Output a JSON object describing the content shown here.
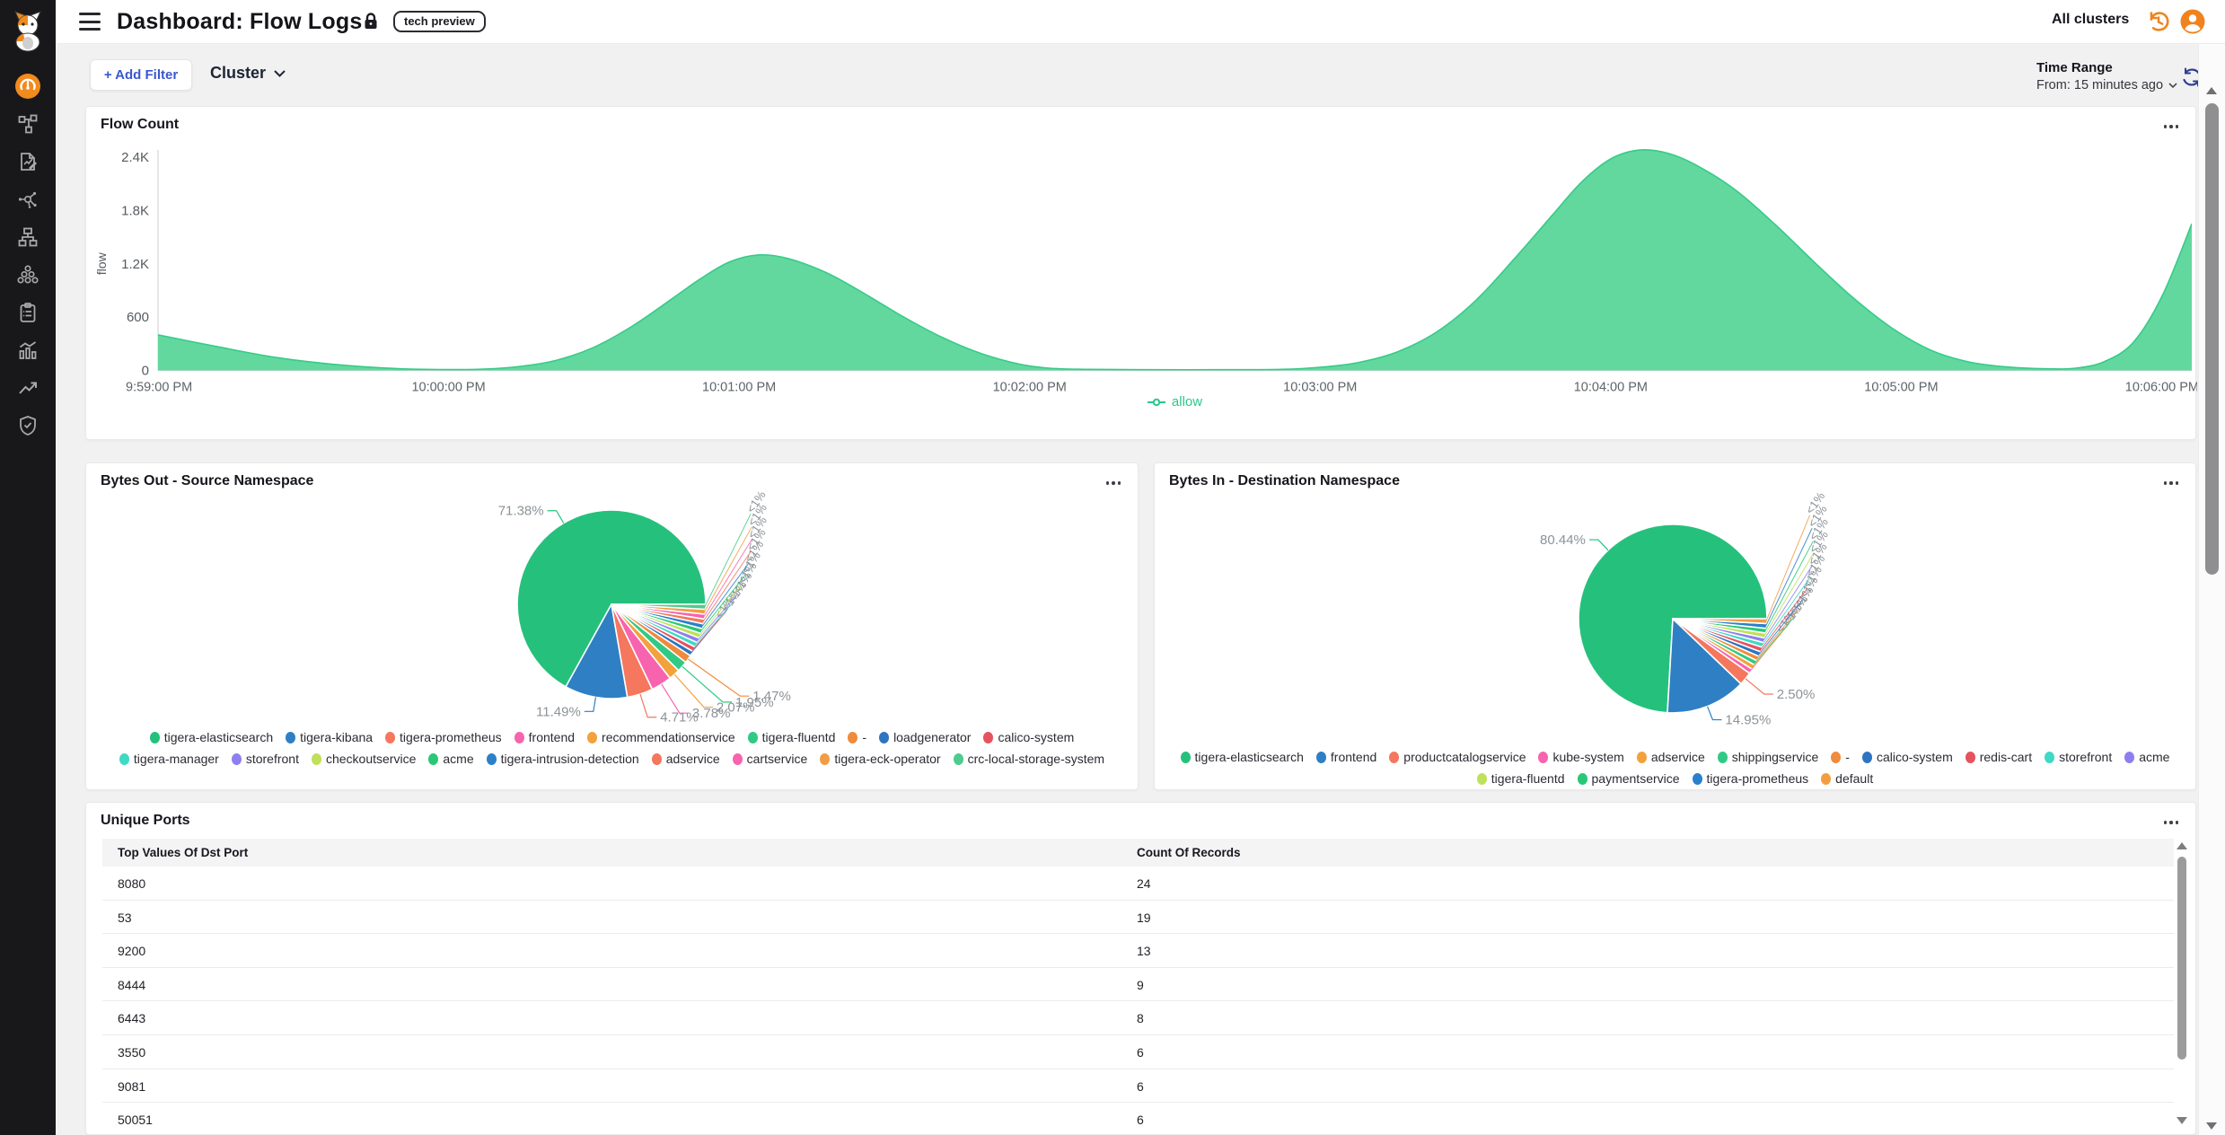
{
  "app": {
    "title": "Dashboard: Flow Logs",
    "badge": "tech preview",
    "clusters_label": "All clusters"
  },
  "filter_bar": {
    "add_filter_label": "+ Add Filter",
    "cluster_label": "Cluster",
    "time_range_label": "Time Range",
    "time_range_value": "From: 15 minutes ago"
  },
  "sidebar": {
    "icons": [
      "calico-cat-logo",
      "dashboard-gauge",
      "service-graph",
      "flow-logs",
      "threat-graph",
      "network-topology",
      "clusters",
      "compliance-clipboard",
      "metrics-chart",
      "trends",
      "security-shield"
    ],
    "active": "dashboard-gauge",
    "accent_color": "#f28a1e"
  },
  "chart_data": [
    {
      "type": "area",
      "title": "Flow Count",
      "ylabel": "flow",
      "ylim": [
        0,
        2400
      ],
      "yticks": [
        {
          "v": 0,
          "label": "0"
        },
        {
          "v": 600,
          "label": "600"
        },
        {
          "v": 1200,
          "label": "1.2K"
        },
        {
          "v": 1800,
          "label": "1.8K"
        },
        {
          "v": 2400,
          "label": "2.4K"
        }
      ],
      "xtick_labels": [
        "9:59:00 PM",
        "10:00:00 PM",
        "10:01:00 PM",
        "10:02:00 PM",
        "10:03:00 PM",
        "10:04:00 PM",
        "10:05:00 PM",
        "10:06:00 PM"
      ],
      "x_range_seconds": [
        0,
        420
      ],
      "legend": [
        {
          "label": "allow",
          "color": "#2bc98a"
        }
      ],
      "series": [
        {
          "name": "allow",
          "fill": "#62d89e",
          "line": "#36cb88",
          "points": [
            [
              0,
              400
            ],
            [
              12,
              270
            ],
            [
              25,
              140
            ],
            [
              38,
              60
            ],
            [
              50,
              18
            ],
            [
              58,
              10
            ],
            [
              66,
              12
            ],
            [
              74,
              40
            ],
            [
              82,
              110
            ],
            [
              90,
              260
            ],
            [
              98,
              500
            ],
            [
              106,
              800
            ],
            [
              112,
              1030
            ],
            [
              118,
              1220
            ],
            [
              124,
              1300
            ],
            [
              130,
              1260
            ],
            [
              138,
              1100
            ],
            [
              146,
              860
            ],
            [
              154,
              600
            ],
            [
              162,
              370
            ],
            [
              170,
              190
            ],
            [
              178,
              70
            ],
            [
              184,
              25
            ],
            [
              192,
              12
            ],
            [
              205,
              8
            ],
            [
              220,
              8
            ],
            [
              232,
              12
            ],
            [
              240,
              35
            ],
            [
              248,
              90
            ],
            [
              256,
              210
            ],
            [
              264,
              430
            ],
            [
              272,
              780
            ],
            [
              280,
              1250
            ],
            [
              288,
              1750
            ],
            [
              294,
              2120
            ],
            [
              300,
              2380
            ],
            [
              306,
              2480
            ],
            [
              312,
              2440
            ],
            [
              318,
              2300
            ],
            [
              326,
              2020
            ],
            [
              334,
              1640
            ],
            [
              342,
              1220
            ],
            [
              350,
              820
            ],
            [
              358,
              480
            ],
            [
              366,
              230
            ],
            [
              374,
              95
            ],
            [
              382,
              38
            ],
            [
              390,
              18
            ],
            [
              396,
              25
            ],
            [
              402,
              100
            ],
            [
              408,
              320
            ],
            [
              414,
              850
            ],
            [
              420,
              1650
            ]
          ]
        }
      ]
    },
    {
      "type": "pie",
      "title": "Bytes Out - Source Namespace",
      "slices": [
        {
          "label": "tigera-elasticsearch",
          "value": 71.38,
          "display": "71.38%",
          "color": "#25c17c"
        },
        {
          "label": "tigera-kibana",
          "value": 11.49,
          "display": "11.49%",
          "color": "#2e7fc3"
        },
        {
          "label": "tigera-prometheus",
          "value": 4.71,
          "display": "4.71%",
          "color": "#f4775e"
        },
        {
          "label": "frontend",
          "value": 3.78,
          "display": "3.78%",
          "color": "#f763ae"
        },
        {
          "label": "recommendationservice",
          "value": 2.07,
          "display": "2.07%",
          "color": "#f2a23c"
        },
        {
          "label": "tigera-fluentd",
          "value": 1.95,
          "display": "1.95%",
          "color": "#30ca85"
        },
        {
          "label": "-",
          "value": 1.47,
          "display": "1.47%",
          "color": "#f08a3c"
        },
        {
          "label": "loadgenerator",
          "value": 0.29,
          "display": "<1%",
          "color": "#2f74c0"
        },
        {
          "label": "calico-system",
          "value": 0.29,
          "display": "<1%",
          "color": "#e6525e"
        },
        {
          "label": "tigera-manager",
          "value": 0.29,
          "display": "<1%",
          "color": "#3fd9c4"
        },
        {
          "label": "storefront",
          "value": 0.29,
          "display": "<1%",
          "color": "#8d7ff0"
        },
        {
          "label": "checkoutservice",
          "value": 0.29,
          "display": "<1%",
          "color": "#bfe05a"
        },
        {
          "label": "acme",
          "value": 0.29,
          "display": "<1%",
          "color": "#28c876"
        },
        {
          "label": "tigera-intrusion-detection",
          "value": 0.29,
          "display": "<1%",
          "color": "#2b80ca"
        },
        {
          "label": "adservice",
          "value": 0.29,
          "display": "<1%",
          "color": "#f4775e"
        },
        {
          "label": "cartservice",
          "value": 0.29,
          "display": "<1%",
          "color": "#f763ae"
        },
        {
          "label": "tigera-eck-operator",
          "value": 0.28,
          "display": "<1%",
          "color": "#f29d43"
        },
        {
          "label": "crc-local-storage-system",
          "value": 0.28,
          "display": "<1%",
          "color": "#4ecb8d"
        }
      ]
    },
    {
      "type": "pie",
      "title": "Bytes In - Destination Namespace",
      "slices": [
        {
          "label": "tigera-elasticsearch",
          "value": 80.44,
          "display": "80.44%",
          "color": "#25c17c"
        },
        {
          "label": "frontend",
          "value": 14.95,
          "display": "14.95%",
          "color": "#2e7fc3"
        },
        {
          "label": "productcatalogservice",
          "value": 2.5,
          "display": "2.50%",
          "color": "#f4775e"
        },
        {
          "label": "kube-system",
          "value": 0.18,
          "display": "<1%",
          "color": "#f763ae"
        },
        {
          "label": "adservice",
          "value": 0.18,
          "display": "<1%",
          "color": "#f2a23c"
        },
        {
          "label": "shippingservice",
          "value": 0.18,
          "display": "<1%",
          "color": "#30ca85"
        },
        {
          "label": "-",
          "value": 0.18,
          "display": "<1%",
          "color": "#f08a3c"
        },
        {
          "label": "calico-system",
          "value": 0.18,
          "display": "<1%",
          "color": "#2f74c0"
        },
        {
          "label": "redis-cart",
          "value": 0.18,
          "display": "<1%",
          "color": "#e6525e"
        },
        {
          "label": "storefront",
          "value": 0.18,
          "display": "<1%",
          "color": "#3fd9c4"
        },
        {
          "label": "acme",
          "value": 0.18,
          "display": "<1%",
          "color": "#8d7ff0"
        },
        {
          "label": "tigera-fluentd",
          "value": 0.18,
          "display": "<1%",
          "color": "#bfe05a"
        },
        {
          "label": "paymentservice",
          "value": 0.18,
          "display": "<1%",
          "color": "#28c876"
        },
        {
          "label": "tigera-prometheus",
          "value": 0.18,
          "display": "<1%",
          "color": "#2b80ca"
        },
        {
          "label": "default",
          "value": 0.17,
          "display": "<1%",
          "color": "#f29d43"
        }
      ]
    },
    {
      "type": "table",
      "title": "Unique Ports",
      "columns": [
        "Top Values Of Dst Port",
        "Count Of Records"
      ],
      "rows": [
        [
          "8080",
          "24"
        ],
        [
          "53",
          "19"
        ],
        [
          "9200",
          "13"
        ],
        [
          "8444",
          "9"
        ],
        [
          "6443",
          "8"
        ],
        [
          "3550",
          "6"
        ],
        [
          "9081",
          "6"
        ],
        [
          "50051",
          "6"
        ]
      ]
    }
  ]
}
